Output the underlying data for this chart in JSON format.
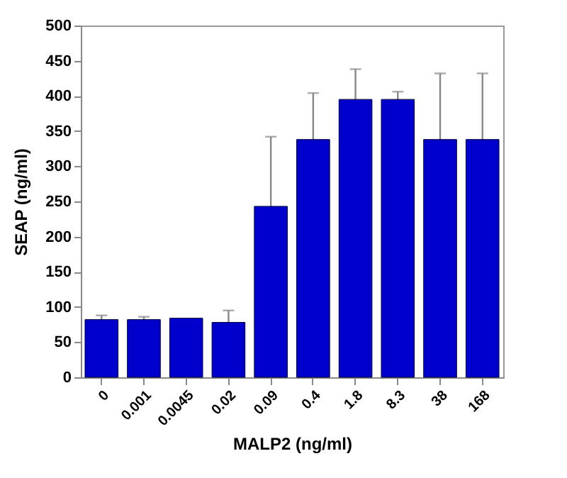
{
  "chart_data": {
    "type": "bar",
    "xlabel": "MALP2 (ng/ml)",
    "ylabel": "SEAP (ng/ml)",
    "categories": [
      "0",
      "0.001",
      "0.0045",
      "0.02",
      "0.09",
      "0.4",
      "1.8",
      "8.3",
      "38",
      "168"
    ],
    "values": [
      82,
      82,
      84,
      78,
      243,
      338,
      395,
      395,
      338,
      338
    ],
    "errors": [
      6,
      4,
      null,
      17,
      99,
      66,
      43,
      11,
      94,
      94
    ],
    "color": "#0000cc",
    "ylim": [
      0,
      500
    ],
    "yticks": [
      0,
      50,
      100,
      150,
      200,
      250,
      300,
      350,
      400,
      450,
      500
    ],
    "grid": false
  }
}
